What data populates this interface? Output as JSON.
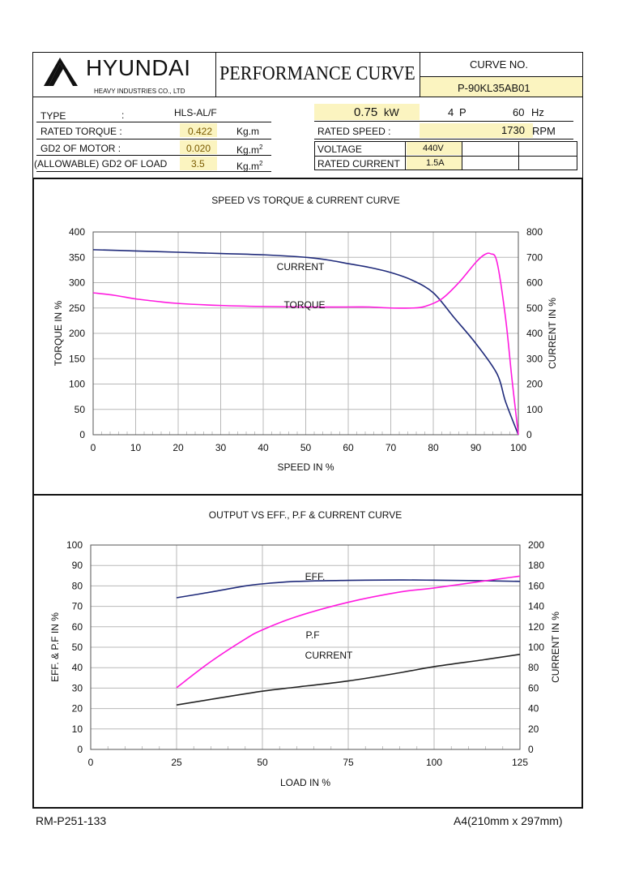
{
  "header": {
    "company": "HYUNDAI",
    "company_sub": "HEAVY INDUSTRIES CO., LTD",
    "doc_title": "PERFORMANCE  CURVE",
    "curve_no_label": "CURVE NO.",
    "curve_no": "P-90KL35AB01"
  },
  "specs": {
    "type_label": "TYPE",
    "colon": ":",
    "type_value": "HLS-AL/F",
    "rated_torque_label": "RATED TORQUE :",
    "rated_torque_value": "0.422",
    "rated_torque_unit": "Kg.m",
    "gd2_motor_label": "GD2 OF MOTOR :",
    "gd2_motor_value": "0.020",
    "gd2_load_label": "(ALLOWABLE) GD2 OF LOAD",
    "gd2_load_value": "3.5",
    "gd2_unit_base": "Kg.m",
    "gd2_unit_sup": "2",
    "power_value": "0.75",
    "power_unit": "kW",
    "poles_value": "4",
    "poles_unit": "P",
    "freq_value": "60",
    "freq_unit": "Hz",
    "rated_speed_label": "RATED    SPEED :",
    "rated_speed_value": "1730",
    "rated_speed_unit": "RPM",
    "voltage_label": "VOLTAGE",
    "voltage_value": "440V",
    "rated_current_label": "RATED CURRENT",
    "rated_current_value": "1.5A"
  },
  "footer": {
    "left": "RM-P251-133",
    "right": "A4(210mm x 297mm)"
  },
  "colors": {
    "blue_curve": "#1f2a7a",
    "magenta_curve": "#ff1adf",
    "black_curve": "#222222",
    "highlight": "#fbf4c0"
  },
  "chart_data": [
    {
      "type": "line",
      "title": "SPEED VS TORQUE & CURRENT CURVE",
      "xlabel": "SPEED IN %",
      "ylabel": "TORQUE IN %",
      "y2label": "CURRENT IN %",
      "xlim": [
        0,
        100
      ],
      "ylim": [
        0,
        400
      ],
      "y2lim": [
        0,
        800
      ],
      "xticks": [
        0,
        10,
        20,
        30,
        40,
        50,
        60,
        70,
        80,
        90,
        100
      ],
      "yticks": [
        0,
        50,
        100,
        150,
        200,
        250,
        300,
        350,
        400
      ],
      "y2ticks": [
        0,
        100,
        200,
        300,
        400,
        500,
        600,
        700,
        800
      ],
      "grid": true,
      "series": [
        {
          "name": "CURRENT",
          "axis": "right",
          "color": "blue_curve",
          "x": [
            0,
            10,
            20,
            30,
            40,
            50,
            55,
            60,
            65,
            70,
            75,
            80,
            85,
            90,
            95,
            97,
            100
          ],
          "y": [
            730,
            725,
            720,
            715,
            710,
            700,
            690,
            675,
            660,
            640,
            610,
            560,
            460,
            360,
            240,
            130,
            0
          ]
        },
        {
          "name": "TORQUE",
          "axis": "left",
          "color": "magenta_curve",
          "x": [
            0,
            5,
            10,
            15,
            20,
            30,
            40,
            50,
            60,
            65,
            70,
            75,
            78,
            82,
            86,
            90,
            92,
            93.5,
            95,
            97,
            98.5,
            100
          ],
          "y": [
            280,
            275,
            268,
            263,
            259,
            255,
            253,
            252,
            252,
            252,
            250,
            250,
            253,
            268,
            300,
            340,
            355,
            357,
            340,
            230,
            110,
            0
          ]
        }
      ],
      "annotations": [
        "CURRENT",
        "TORQUE"
      ]
    },
    {
      "type": "line",
      "title": "OUTPUT VS EFF., P.F & CURRENT CURVE",
      "xlabel": "LOAD IN %",
      "ylabel": "EFF. & P.F IN %",
      "y2label": "CURRENT IN %",
      "xlim": [
        0,
        125
      ],
      "ylim": [
        0,
        100
      ],
      "y2lim": [
        0,
        200
      ],
      "xticks": [
        0,
        25,
        50,
        75,
        100,
        125
      ],
      "yticks": [
        0,
        10,
        20,
        30,
        40,
        50,
        60,
        70,
        80,
        90,
        100
      ],
      "y2ticks": [
        0,
        20,
        40,
        60,
        80,
        100,
        120,
        140,
        160,
        180,
        200
      ],
      "grid": true,
      "series": [
        {
          "name": "EFF.",
          "axis": "left",
          "color": "blue_curve",
          "x": [
            25,
            35,
            45,
            50,
            60,
            75,
            90,
            100,
            115,
            125
          ],
          "y": [
            74.2,
            77,
            80,
            81,
            82.2,
            82.7,
            82.9,
            82.8,
            82.5,
            82.2
          ]
        },
        {
          "name": "P.F",
          "axis": "left",
          "color": "magenta_curve",
          "x": [
            25,
            35,
            45,
            50,
            60,
            75,
            90,
            100,
            115,
            125
          ],
          "y": [
            30.2,
            43,
            54,
            58.5,
            65,
            72,
            77,
            79,
            82.5,
            84.8
          ]
        },
        {
          "name": "CURRENT",
          "axis": "right",
          "color": "black_curve",
          "x": [
            25,
            35,
            50,
            60,
            75,
            90,
            100,
            115,
            125
          ],
          "y": [
            43.5,
            49,
            57,
            61,
            67,
            75,
            81,
            88,
            93
          ]
        }
      ],
      "annotations": [
        "EFF.",
        "P.F",
        "CURRENT"
      ]
    }
  ]
}
